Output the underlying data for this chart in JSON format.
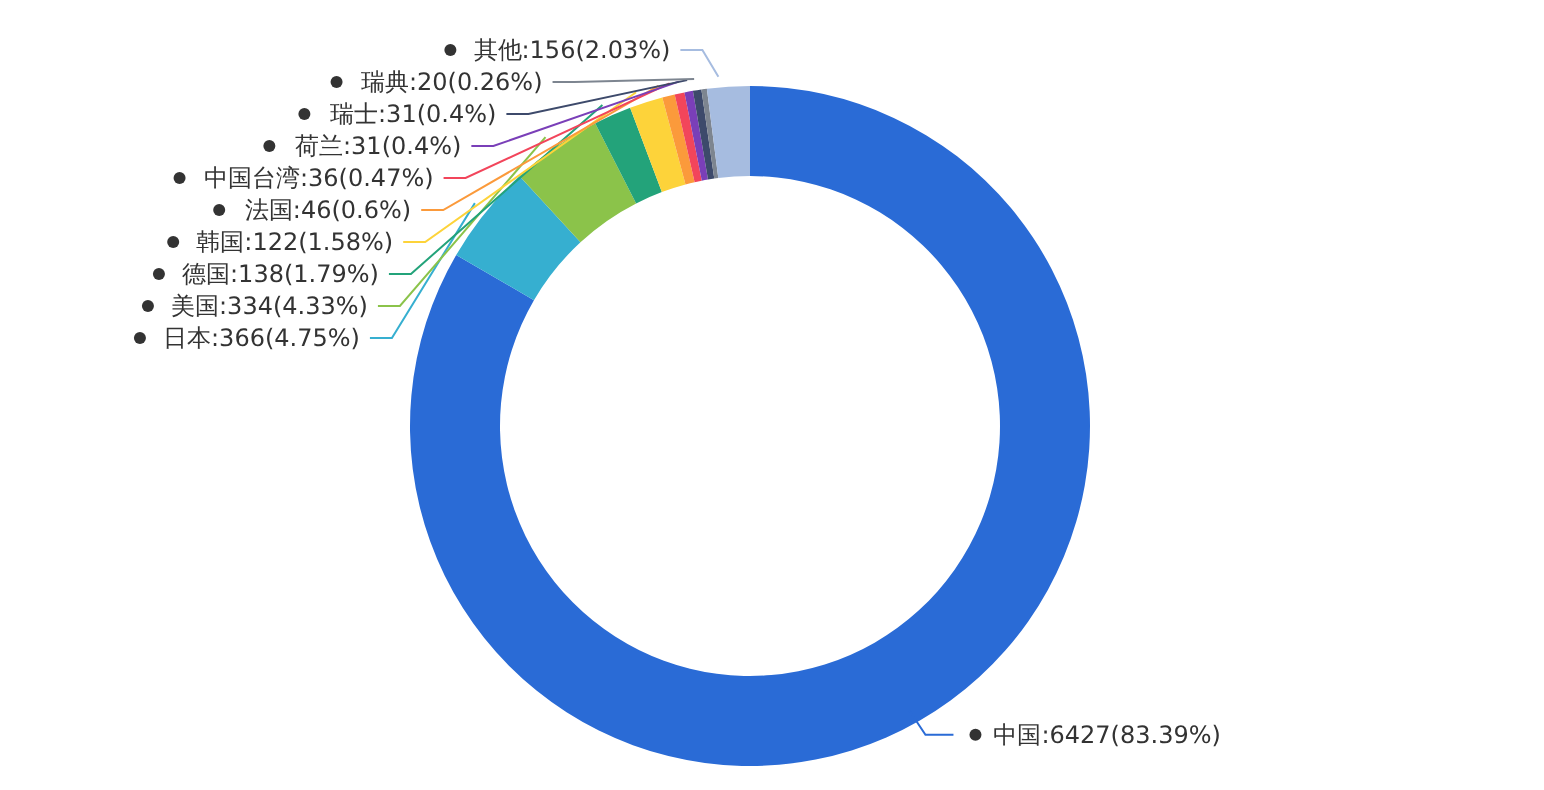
{
  "chart_data": {
    "type": "donut",
    "categories": [
      "中国",
      "日本",
      "美国",
      "德国",
      "韩国",
      "法国",
      "中国台湾",
      "荷兰",
      "瑞士",
      "瑞典",
      "其他"
    ],
    "values": [
      6427,
      366,
      334,
      138,
      122,
      46,
      36,
      31,
      31,
      20,
      156
    ],
    "value_labels": [
      "6427(83.39%)",
      "366(4.75%)",
      "334(4.33%)",
      "138(1.79%)",
      "122(1.58%)",
      "46(0.6%)",
      "36(0.47%)",
      "31(0.4%)",
      "31(0.4%)",
      "20(0.26%)",
      "156(2.03%)"
    ],
    "colors": [
      "#2a6bd6",
      "#36afd0",
      "#8bc34a",
      "#23a37a",
      "#fdd33a",
      "#fb9a3b",
      "#f2455b",
      "#7a3fb8",
      "#3d4a6b",
      "#7d8590",
      "#a6bce0"
    ],
    "legend": false
  }
}
